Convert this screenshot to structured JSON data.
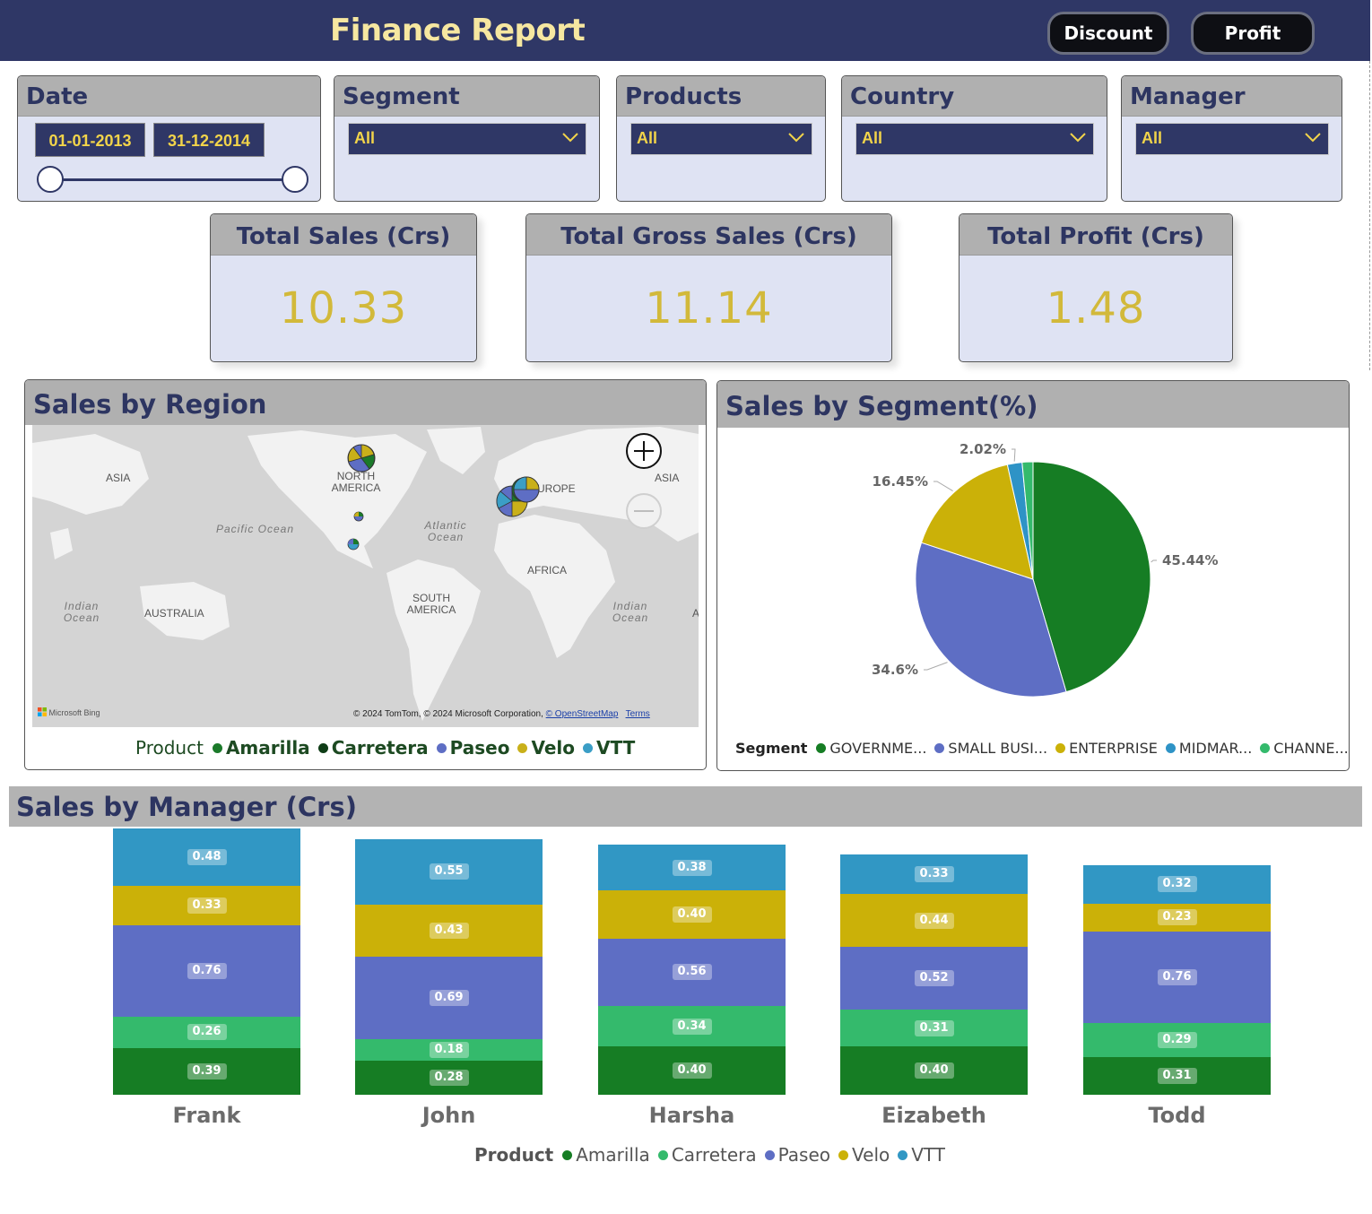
{
  "header": {
    "title": "Finance Report",
    "discount_label": "Discount",
    "profit_label": "Profit"
  },
  "slicers": {
    "date": {
      "title": "Date",
      "start": "01-01-2013",
      "end": "31-12-2014"
    },
    "segment": {
      "title": "Segment",
      "value": "All"
    },
    "products": {
      "title": "Products",
      "value": "All"
    },
    "country": {
      "title": "Country",
      "value": "All"
    },
    "manager": {
      "title": "Manager",
      "value": "All"
    }
  },
  "kpis": {
    "total_sales": {
      "title": "Total Sales (Crs)",
      "value": "10.33"
    },
    "total_gross_sales": {
      "title": "Total Gross Sales (Crs)",
      "value": "11.14"
    },
    "total_profit": {
      "title": "Total Profit (Crs)",
      "value": "1.48"
    }
  },
  "region_map": {
    "title": "Sales by Region",
    "labels": {
      "asia_left": "ASIA",
      "north_america": "NORTH AMERICA",
      "europe": "EUROPE",
      "asia_right": "ASIA",
      "pacific": "Pacific Ocean",
      "atlantic": "Atlantic Ocean",
      "africa": "AFRICA",
      "south_america": "SOUTH AMERICA",
      "indian_left": "Indian Ocean",
      "indian_right": "Indian Ocean",
      "australia": "AUSTRALIA",
      "edge_a": "A"
    },
    "attribution": {
      "text": "© 2024 TomTom, © 2024 Microsoft Corporation,",
      "osm": "© OpenStreetMap",
      "terms": "Terms",
      "bing": "Microsoft Bing"
    },
    "legend_title": "Product",
    "legend": [
      {
        "name": "Amarilla",
        "color": "#1b7a2a"
      },
      {
        "name": "Carretera",
        "color": "#0f3d17"
      },
      {
        "name": "Paseo",
        "color": "#5e6ec4"
      },
      {
        "name": "Velo",
        "color": "#c9b01a"
      },
      {
        "name": "VTT",
        "color": "#3b9ec6"
      }
    ]
  },
  "segment_pie": {
    "title": "Sales by Segment(%)",
    "legend_title": "Segment",
    "chart_data": {
      "type": "pie",
      "title": "Sales by Segment(%)",
      "slices": [
        {
          "name": "GOVERNME...",
          "value": 45.44,
          "label": "45.44%",
          "color": "#167d24"
        },
        {
          "name": "SMALL BUSI...",
          "value": 34.6,
          "label": "34.6%",
          "color": "#5e6ec4"
        },
        {
          "name": "ENTERPRISE",
          "value": 16.45,
          "label": "16.45%",
          "color": "#cbb108"
        },
        {
          "name": "MIDMAR...",
          "value": 2.02,
          "label": "2.02%",
          "color": "#2e93c6"
        },
        {
          "name": "CHANNE...",
          "value": 1.49,
          "label": "",
          "color": "#34ba6c"
        }
      ]
    }
  },
  "manager_chart": {
    "title": "Sales by Manager (Crs)",
    "legend_title": "Product",
    "chart_data": {
      "type": "bar",
      "stacked": true,
      "categories": [
        "Frank",
        "John",
        "Harsha",
        "Eizabeth",
        "Todd"
      ],
      "series": [
        {
          "name": "Amarilla",
          "color": "#167d24",
          "values": [
            0.39,
            0.28,
            0.4,
            0.4,
            0.31
          ]
        },
        {
          "name": "Carretera",
          "color": "#34ba6c",
          "values": [
            0.26,
            0.18,
            0.34,
            0.31,
            0.29
          ]
        },
        {
          "name": "Paseo",
          "color": "#5e6ec4",
          "values": [
            0.76,
            0.69,
            0.56,
            0.52,
            0.76
          ]
        },
        {
          "name": "Velo",
          "color": "#cbb108",
          "values": [
            0.33,
            0.43,
            0.4,
            0.44,
            0.23
          ]
        },
        {
          "name": "VTT",
          "color": "#3197c4",
          "values": [
            0.48,
            0.55,
            0.38,
            0.33,
            0.32
          ]
        }
      ],
      "labels": [
        [
          "0.39",
          "0.28",
          "0.40",
          "0.40",
          "0.31"
        ],
        [
          "0.26",
          "0.18",
          "0.34",
          "0.31",
          "0.29"
        ],
        [
          "0.76",
          "0.69",
          "0.56",
          "0.52",
          "0.76"
        ],
        [
          "0.33",
          "0.43",
          "0.40",
          "0.44",
          "0.23"
        ],
        [
          "0.48",
          "0.55",
          "0.38",
          "0.33",
          "0.32"
        ]
      ]
    }
  }
}
